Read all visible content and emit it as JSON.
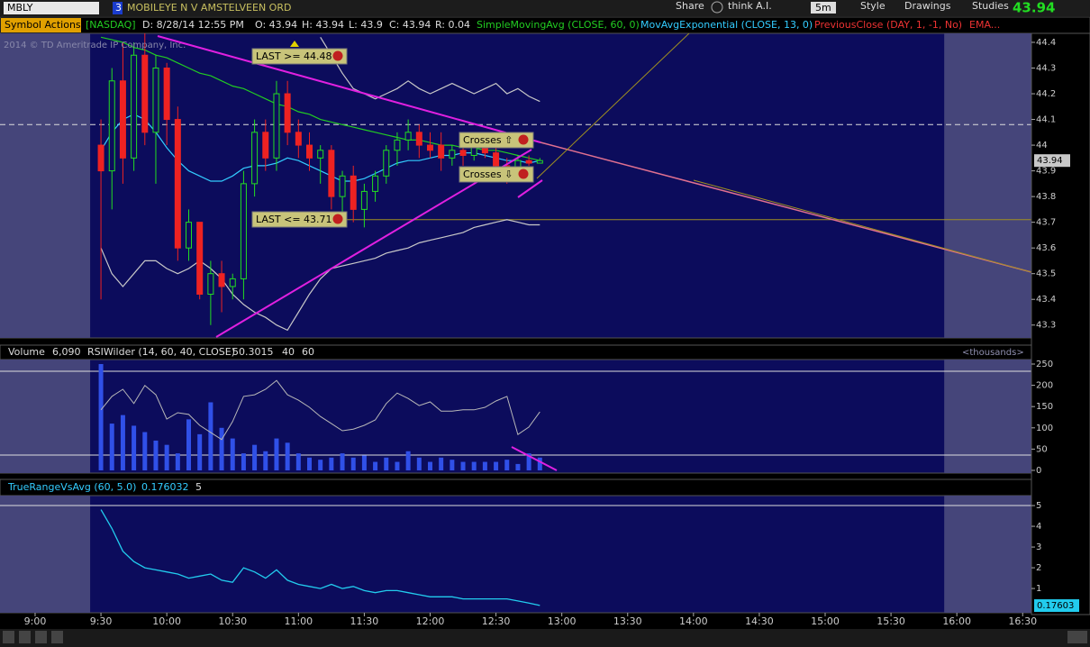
{
  "toolbar": {
    "symbol": "MBLY",
    "link": "3",
    "description": "MOBILEYE N V AMSTELVEEN ORD",
    "share": "Share",
    "think": "think A.I.",
    "period": "5m",
    "style": "Style",
    "drawings": "Drawings",
    "studies": "Studies",
    "last": "43.94"
  },
  "header": {
    "symbol_actions": "Symbol Actions",
    "exchange": "[NASDAQ]",
    "date": "D: 8/28/14 12:55 PM",
    "open": "O: 43.94",
    "high": "H: 43.94",
    "low": "L: 43.9",
    "close": "C: 43.94",
    "range": "R: 0.04"
  },
  "watermark": "2014 © TD Ameritrade IP Company, Inc.",
  "chart_data": [
    {
      "type": "candlestick",
      "x": [
        "9:30",
        "9:35",
        "9:40",
        "9:45",
        "9:50",
        "9:55",
        "10:00",
        "10:05",
        "10:10",
        "10:15",
        "10:20",
        "10:25",
        "10:30",
        "10:35",
        "10:40",
        "10:45",
        "10:50",
        "10:55",
        "11:00",
        "11:05",
        "11:10",
        "11:15",
        "11:20",
        "11:25",
        "11:30",
        "11:35",
        "11:40",
        "11:45",
        "11:50",
        "11:55",
        "12:00",
        "12:05",
        "12:10",
        "12:15",
        "12:20",
        "12:25",
        "12:30",
        "12:35",
        "12:40",
        "12:45",
        "12:50"
      ],
      "open": [
        44.0,
        43.9,
        44.25,
        43.95,
        44.35,
        44.05,
        44.3,
        44.1,
        43.6,
        43.7,
        43.42,
        43.5,
        43.45,
        43.48,
        43.85,
        44.05,
        43.95,
        44.2,
        44.05,
        44.0,
        43.95,
        43.98,
        43.8,
        43.88,
        43.75,
        43.82,
        43.88,
        43.98,
        44.02,
        44.05,
        44.0,
        44.0,
        43.95,
        43.98,
        43.96,
        43.99,
        43.97,
        43.92,
        43.88,
        43.94,
        43.93
      ],
      "high": [
        44.1,
        44.3,
        44.4,
        44.4,
        44.45,
        44.35,
        44.32,
        44.15,
        43.75,
        43.7,
        43.55,
        43.55,
        43.5,
        43.9,
        44.1,
        44.1,
        44.25,
        44.25,
        44.1,
        44.05,
        44.0,
        44.0,
        43.9,
        43.92,
        43.85,
        43.9,
        44.0,
        44.05,
        44.1,
        44.08,
        44.05,
        44.05,
        44.0,
        44.02,
        44.0,
        44.02,
        44.0,
        43.95,
        43.96,
        43.96,
        43.95
      ],
      "low": [
        43.4,
        43.75,
        43.85,
        43.9,
        44.0,
        43.85,
        44.0,
        43.55,
        43.55,
        43.4,
        43.3,
        43.35,
        43.4,
        43.4,
        43.8,
        43.9,
        43.9,
        44.0,
        43.95,
        43.9,
        43.85,
        43.75,
        43.7,
        43.7,
        43.68,
        43.78,
        43.85,
        43.92,
        43.98,
        43.95,
        43.95,
        43.9,
        43.92,
        43.92,
        43.94,
        43.95,
        43.9,
        43.85,
        43.86,
        43.92,
        43.93
      ],
      "close": [
        43.9,
        44.25,
        43.95,
        44.35,
        44.05,
        44.3,
        44.1,
        43.6,
        43.7,
        43.42,
        43.5,
        43.45,
        43.48,
        43.85,
        44.05,
        43.95,
        44.2,
        44.05,
        44.0,
        43.95,
        43.98,
        43.8,
        43.88,
        43.75,
        43.82,
        43.88,
        43.98,
        44.02,
        44.05,
        44.0,
        43.98,
        43.95,
        43.98,
        43.96,
        43.99,
        43.97,
        43.92,
        43.88,
        43.94,
        43.93,
        43.94
      ],
      "series": [
        {
          "name": "SimpleMovingAvg (CLOSE, 60, 0)",
          "color": "#22cc22",
          "values": [
            44.42,
            44.41,
            44.4,
            44.38,
            44.37,
            44.35,
            44.34,
            44.32,
            44.3,
            44.28,
            44.27,
            44.25,
            44.23,
            44.22,
            44.2,
            44.18,
            44.16,
            44.15,
            44.13,
            44.12,
            44.1,
            44.09,
            44.08,
            44.07,
            44.06,
            44.05,
            44.04,
            44.03,
            44.02,
            44.02,
            44.01,
            44.0,
            44.0,
            43.99,
            43.99,
            43.98,
            43.98,
            43.97,
            43.96,
            43.95,
            43.94
          ]
        },
        {
          "name": "MovAvgExponential (CLOSE, 13, 0)",
          "color": "#33ccff",
          "values": [
            43.98,
            44.05,
            44.1,
            44.12,
            44.1,
            44.05,
            43.99,
            43.94,
            43.9,
            43.88,
            43.86,
            43.86,
            43.88,
            43.91,
            43.92,
            43.92,
            43.93,
            43.95,
            43.94,
            43.92,
            43.9,
            43.88,
            43.86,
            43.86,
            43.87,
            43.89,
            43.91,
            43.93,
            43.94,
            43.94,
            43.95,
            43.96,
            43.96,
            43.97,
            43.97,
            43.96,
            43.95,
            43.94,
            43.94,
            43.93,
            43.94
          ]
        }
      ],
      "bands": {
        "color": "#c8c8c8",
        "upper": [
          null,
          null,
          null,
          null,
          null,
          null,
          null,
          null,
          null,
          null,
          null,
          null,
          null,
          null,
          null,
          null,
          null,
          null,
          null,
          null,
          44.42,
          44.35,
          44.28,
          44.22,
          44.2,
          44.18,
          44.2,
          44.22,
          44.25,
          44.22,
          44.2,
          44.22,
          44.24,
          44.22,
          44.2,
          44.22,
          44.24,
          44.2,
          44.22,
          44.19,
          44.17
        ],
        "lower": [
          43.6,
          43.5,
          43.45,
          43.5,
          43.55,
          43.55,
          43.52,
          43.5,
          43.52,
          43.55,
          43.52,
          43.48,
          43.42,
          43.38,
          43.35,
          43.33,
          43.3,
          43.28,
          43.35,
          43.42,
          43.48,
          43.52,
          43.53,
          43.54,
          43.55,
          43.56,
          43.58,
          43.59,
          43.6,
          43.62,
          43.63,
          43.64,
          43.65,
          43.66,
          43.68,
          43.69,
          43.7,
          43.71,
          43.7,
          43.69,
          43.69
        ]
      },
      "previous_close": {
        "name": "PreviousClose (DAY, 1, -1, No)",
        "value": 44.08
      },
      "extra_study": "EMA...",
      "alerts": [
        {
          "text": "LAST >= 44.48",
          "value": 44.48
        },
        {
          "text": "Crosses ⇧"
        },
        {
          "text": "Crosses ⇩"
        },
        {
          "text": "LAST <= 43.71",
          "value": 43.71
        }
      ],
      "ylim": [
        43.25,
        44.435
      ],
      "yticks": [
        44.4,
        44.3,
        44.2,
        44.1,
        44,
        43.9,
        43.8,
        43.7,
        43.6,
        43.5,
        43.4,
        43.3
      ],
      "last": 43.94,
      "xlim": [
        "8:44",
        "16:34"
      ],
      "session": [
        "9:30",
        "16:00"
      ],
      "xticks": [
        "9:00",
        "9:30",
        "10:00",
        "10:30",
        "11:00",
        "11:30",
        "12:00",
        "12:30",
        "13:00",
        "13:30",
        "14:00",
        "14:30",
        "15:00",
        "15:30",
        "16:00",
        "16:30"
      ]
    },
    {
      "type": "bar",
      "title": "Volume",
      "last": "6,090",
      "unit_label": "<thousands>",
      "color": "#3050e8",
      "values": [
        250,
        110,
        130,
        105,
        90,
        70,
        60,
        40,
        120,
        85,
        160,
        100,
        75,
        40,
        60,
        45,
        75,
        65,
        40,
        30,
        25,
        30,
        40,
        30,
        35,
        20,
        30,
        20,
        45,
        30,
        20,
        30,
        25,
        20,
        20,
        20,
        20,
        25,
        15,
        40,
        30
      ],
      "ylim": [
        -6.4,
        260.6
      ],
      "yticks": [
        250,
        200,
        150,
        100,
        50,
        0
      ],
      "rsi": {
        "name": "RSIWilder (14, 60, 40, CLOSE)",
        "last": 50.3015,
        "color": "#b8b8b8",
        "levels": [
          40,
          60
        ],
        "ylim": [
          35.7,
          62.8
        ],
        "values": [
          50.8,
          54,
          55.7,
          52.3,
          56.6,
          54.4,
          48.6,
          50.1,
          49.7,
          47.1,
          45.4,
          43.7,
          48,
          54,
          54.4,
          55.7,
          57.8,
          54.4,
          53.1,
          51.4,
          49.2,
          47.5,
          45.8,
          46.2,
          47.1,
          48.4,
          52.3,
          54.8,
          53.5,
          51.8,
          52.7,
          50.5,
          50.5,
          50.8,
          50.8,
          51.4,
          52.9,
          54,
          44.9,
          46.7,
          50.3
        ]
      }
    },
    {
      "type": "line",
      "name": "TrueRangeVsAvg (60, 5.0)",
      "last": 0.176032,
      "level": 5,
      "color": "#22ccee",
      "last_marker": {
        "value": 0.176032,
        "label": "0.17603"
      },
      "values": [
        4.8,
        3.9,
        2.8,
        2.3,
        2.0,
        1.9,
        1.8,
        1.7,
        1.5,
        1.6,
        1.7,
        1.4,
        1.3,
        2.0,
        1.8,
        1.5,
        1.9,
        1.4,
        1.2,
        1.1,
        1.0,
        1.2,
        1.0,
        1.1,
        0.9,
        0.8,
        0.9,
        0.9,
        0.8,
        0.7,
        0.6,
        0.6,
        0.6,
        0.5,
        0.5,
        0.5,
        0.5,
        0.5,
        0.4,
        0.3,
        0.18
      ],
      "ylim": [
        -0.17,
        5.48
      ],
      "yticks": [
        5,
        4,
        3,
        2,
        1
      ]
    }
  ]
}
